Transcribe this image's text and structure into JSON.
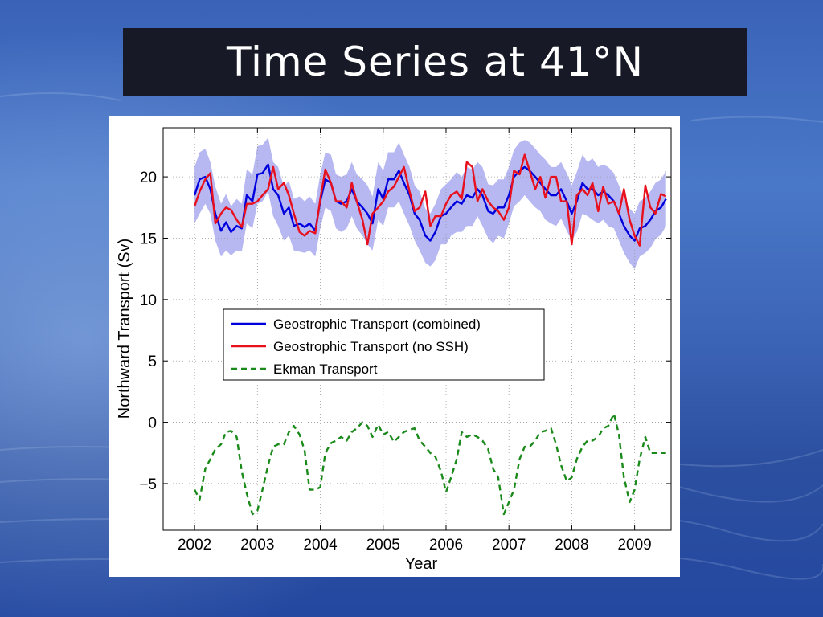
{
  "slide": {
    "title": "Time Series at 41°N"
  },
  "colors": {
    "combined": "#0000dd",
    "no_ssh": "#e8101c",
    "ekman": "#1a8a1a",
    "band": "#b7b7f2",
    "title_bar": "#171a26"
  },
  "chart_data": {
    "type": "line",
    "title": "",
    "xlabel": "Year",
    "ylabel": "Northward Transport (Sv)",
    "xlim": [
      2001.5,
      2009.58
    ],
    "ylim": [
      -8.8,
      24
    ],
    "xticks": [
      2002,
      2003,
      2004,
      2005,
      2006,
      2007,
      2008,
      2009
    ],
    "xtick_labels": [
      "2002",
      "2003",
      "2004",
      "2005",
      "2006",
      "2007",
      "2008",
      "2009"
    ],
    "yticks": [
      -5,
      0,
      5,
      10,
      15,
      20
    ],
    "ytick_labels": [
      "−5",
      "0",
      "5",
      "10",
      "15",
      "20"
    ],
    "grid": true,
    "legend_position": "center",
    "legend": [
      "Geostrophic Transport (combined)",
      "Geostrophic Transport (no SSH)",
      "Ekman Transport"
    ],
    "series": [
      {
        "name": "Geostrophic Transport (combined)",
        "style": "solid",
        "x": [
          2002.0,
          2002.08,
          2002.17,
          2002.25,
          2002.33,
          2002.42,
          2002.5,
          2002.58,
          2002.67,
          2002.75,
          2002.83,
          2002.92,
          2003.0,
          2003.08,
          2003.17,
          2003.25,
          2003.33,
          2003.42,
          2003.5,
          2003.58,
          2003.67,
          2003.75,
          2003.83,
          2003.92,
          2004.0,
          2004.08,
          2004.17,
          2004.25,
          2004.33,
          2004.42,
          2004.5,
          2004.58,
          2004.67,
          2004.75,
          2004.83,
          2004.92,
          2005.0,
          2005.08,
          2005.17,
          2005.25,
          2005.33,
          2005.42,
          2005.5,
          2005.58,
          2005.67,
          2005.75,
          2005.83,
          2005.92,
          2006.0,
          2006.08,
          2006.17,
          2006.25,
          2006.33,
          2006.42,
          2006.5,
          2006.58,
          2006.67,
          2006.75,
          2006.83,
          2006.92,
          2007.0,
          2007.08,
          2007.17,
          2007.25,
          2007.33,
          2007.42,
          2007.5,
          2007.58,
          2007.67,
          2007.75,
          2007.83,
          2007.92,
          2008.0,
          2008.08,
          2008.17,
          2008.25,
          2008.33,
          2008.42,
          2008.5,
          2008.58,
          2008.67,
          2008.75,
          2008.83,
          2008.92,
          2009.0,
          2009.08,
          2009.17,
          2009.25,
          2009.33,
          2009.42,
          2009.5
        ],
        "values": [
          18.5,
          19.8,
          20.0,
          19.0,
          17.0,
          15.6,
          16.3,
          15.5,
          16.0,
          15.8,
          18.5,
          18.0,
          20.2,
          20.3,
          21.0,
          19.0,
          18.5,
          17.0,
          17.5,
          16.0,
          16.2,
          15.9,
          16.2,
          15.6,
          18.0,
          19.8,
          19.5,
          18.0,
          17.8,
          18.0,
          19.0,
          18.0,
          17.5,
          17.0,
          16.2,
          19.0,
          18.2,
          19.8,
          19.8,
          20.5,
          19.5,
          18.5,
          17.0,
          16.5,
          15.2,
          14.8,
          15.5,
          16.8,
          17.0,
          17.5,
          18.0,
          17.8,
          18.5,
          18.3,
          19.0,
          18.5,
          17.2,
          17.0,
          17.5,
          17.5,
          18.5,
          20.0,
          20.5,
          20.8,
          20.5,
          20.0,
          19.5,
          19.0,
          18.5,
          18.5,
          19.0,
          18.0,
          17.0,
          18.0,
          19.5,
          19.0,
          19.0,
          18.5,
          18.8,
          18.5,
          18.0,
          17.0,
          16.0,
          15.2,
          14.8,
          15.8,
          16.0,
          16.5,
          17.2,
          17.5,
          18.2
        ]
      },
      {
        "name": "Geostrophic Transport (no SSH)",
        "style": "solid",
        "x": [
          2002.0,
          2002.08,
          2002.17,
          2002.25,
          2002.33,
          2002.42,
          2002.5,
          2002.58,
          2002.67,
          2002.75,
          2002.83,
          2002.92,
          2003.0,
          2003.08,
          2003.17,
          2003.25,
          2003.33,
          2003.42,
          2003.5,
          2003.58,
          2003.67,
          2003.75,
          2003.83,
          2003.92,
          2004.0,
          2004.08,
          2004.17,
          2004.25,
          2004.33,
          2004.42,
          2004.5,
          2004.58,
          2004.67,
          2004.75,
          2004.83,
          2004.92,
          2005.0,
          2005.08,
          2005.17,
          2005.25,
          2005.33,
          2005.42,
          2005.5,
          2005.58,
          2005.67,
          2005.75,
          2005.83,
          2005.92,
          2006.0,
          2006.08,
          2006.17,
          2006.25,
          2006.33,
          2006.42,
          2006.5,
          2006.58,
          2006.67,
          2006.75,
          2006.83,
          2006.92,
          2007.0,
          2007.08,
          2007.17,
          2007.25,
          2007.33,
          2007.42,
          2007.5,
          2007.58,
          2007.67,
          2007.75,
          2007.83,
          2007.92,
          2008.0,
          2008.08,
          2008.17,
          2008.25,
          2008.33,
          2008.42,
          2008.5,
          2008.58,
          2008.67,
          2008.75,
          2008.83,
          2008.92,
          2009.0,
          2009.08,
          2009.17,
          2009.25,
          2009.33,
          2009.42,
          2009.5
        ],
        "values": [
          17.6,
          18.8,
          19.8,
          20.3,
          16.2,
          17.0,
          17.5,
          17.3,
          16.5,
          15.9,
          17.8,
          17.8,
          18.0,
          18.5,
          19.0,
          20.8,
          19.0,
          19.5,
          18.5,
          17.0,
          15.5,
          15.2,
          15.6,
          15.4,
          18.2,
          20.6,
          19.5,
          18.0,
          18.0,
          17.5,
          19.5,
          18.0,
          16.5,
          14.5,
          17.0,
          17.5,
          18.0,
          18.8,
          19.2,
          20.0,
          20.8,
          18.8,
          17.2,
          17.5,
          18.8,
          16.0,
          16.8,
          16.8,
          17.8,
          18.5,
          18.8,
          18.2,
          21.2,
          20.8,
          18.0,
          19.0,
          18.0,
          17.5,
          17.2,
          16.5,
          17.5,
          20.5,
          20.2,
          21.8,
          20.5,
          19.0,
          20.0,
          18.3,
          20.0,
          20.0,
          18.0,
          18.0,
          14.5,
          18.5,
          19.0,
          18.5,
          19.5,
          17.2,
          19.2,
          17.8,
          18.0,
          17.0,
          19.0,
          16.5,
          15.2,
          14.4,
          19.3,
          17.5,
          17.0,
          18.6,
          18.4
        ]
      },
      {
        "name": "Ekman Transport",
        "style": "dashed",
        "x": [
          2002.0,
          2002.08,
          2002.17,
          2002.25,
          2002.33,
          2002.42,
          2002.5,
          2002.58,
          2002.67,
          2002.75,
          2002.83,
          2002.92,
          2003.0,
          2003.08,
          2003.17,
          2003.25,
          2003.33,
          2003.42,
          2003.5,
          2003.58,
          2003.67,
          2003.75,
          2003.83,
          2003.92,
          2004.0,
          2004.08,
          2004.17,
          2004.25,
          2004.33,
          2004.42,
          2004.5,
          2004.58,
          2004.67,
          2004.75,
          2004.83,
          2004.92,
          2005.0,
          2005.08,
          2005.17,
          2005.25,
          2005.33,
          2005.42,
          2005.5,
          2005.58,
          2005.67,
          2005.75,
          2005.83,
          2005.92,
          2006.0,
          2006.08,
          2006.17,
          2006.25,
          2006.33,
          2006.42,
          2006.5,
          2006.58,
          2006.67,
          2006.75,
          2006.83,
          2006.92,
          2007.0,
          2007.08,
          2007.17,
          2007.25,
          2007.33,
          2007.42,
          2007.5,
          2007.58,
          2007.67,
          2007.75,
          2007.83,
          2007.92,
          2008.0,
          2008.08,
          2008.17,
          2008.25,
          2008.33,
          2008.42,
          2008.5,
          2008.58,
          2008.67,
          2008.75,
          2008.83,
          2008.92,
          2009.0,
          2009.08,
          2009.17,
          2009.25,
          2009.33,
          2009.42,
          2009.5
        ],
        "values": [
          -5.5,
          -6.3,
          -3.8,
          -3.0,
          -2.2,
          -1.8,
          -0.8,
          -0.7,
          -1.2,
          -4.0,
          -5.8,
          -7.5,
          -7.2,
          -5.5,
          -3.5,
          -2.0,
          -1.8,
          -1.8,
          -0.8,
          -0.3,
          -1.0,
          -2.3,
          -5.5,
          -5.5,
          -5.3,
          -2.5,
          -1.7,
          -1.5,
          -1.2,
          -1.5,
          -0.8,
          -0.5,
          0.0,
          -0.3,
          -1.2,
          -0.2,
          -1.0,
          -0.8,
          -1.6,
          -1.2,
          -0.8,
          -0.6,
          -0.5,
          -1.5,
          -2.0,
          -2.5,
          -2.8,
          -4.0,
          -5.7,
          -4.5,
          -3.0,
          -0.8,
          -1.2,
          -1.0,
          -1.2,
          -1.5,
          -2.2,
          -3.8,
          -4.5,
          -7.5,
          -6.5,
          -5.5,
          -3.0,
          -2.0,
          -2.0,
          -1.5,
          -0.8,
          -0.7,
          -0.5,
          -1.8,
          -3.5,
          -4.8,
          -4.5,
          -3.0,
          -2.0,
          -1.5,
          -1.5,
          -1.2,
          -0.5,
          -0.3,
          0.7,
          -1.0,
          -4.5,
          -6.5,
          -5.5,
          -3.0,
          -1.2,
          -2.5,
          -2.5,
          -2.5,
          -2.5
        ]
      }
    ],
    "uncertainty_band": {
      "series": "Geostrophic Transport (combined)",
      "x": [
        2002.0,
        2002.08,
        2002.17,
        2002.25,
        2002.33,
        2002.42,
        2002.5,
        2002.58,
        2002.67,
        2002.75,
        2002.83,
        2002.92,
        2003.0,
        2003.08,
        2003.17,
        2003.25,
        2003.33,
        2003.42,
        2003.5,
        2003.58,
        2003.67,
        2003.75,
        2003.83,
        2003.92,
        2004.0,
        2004.08,
        2004.17,
        2004.25,
        2004.33,
        2004.42,
        2004.5,
        2004.58,
        2004.67,
        2004.75,
        2004.83,
        2004.92,
        2005.0,
        2005.08,
        2005.17,
        2005.25,
        2005.33,
        2005.42,
        2005.5,
        2005.58,
        2005.67,
        2005.75,
        2005.83,
        2005.92,
        2006.0,
        2006.08,
        2006.17,
        2006.25,
        2006.33,
        2006.42,
        2006.5,
        2006.58,
        2006.67,
        2006.75,
        2006.83,
        2006.92,
        2007.0,
        2007.08,
        2007.17,
        2007.25,
        2007.33,
        2007.42,
        2007.5,
        2007.58,
        2007.67,
        2007.75,
        2007.83,
        2007.92,
        2008.0,
        2008.08,
        2008.17,
        2008.25,
        2008.33,
        2008.42,
        2008.5,
        2008.58,
        2008.67,
        2008.75,
        2008.83,
        2008.92,
        2009.0,
        2009.08,
        2009.17,
        2009.25,
        2009.33,
        2009.42,
        2009.5
      ],
      "lower": [
        16.2,
        17.0,
        17.8,
        17.0,
        14.8,
        13.5,
        14.0,
        13.6,
        14.0,
        13.9,
        16.2,
        15.8,
        17.8,
        18.0,
        18.8,
        16.8,
        16.0,
        14.8,
        15.2,
        14.0,
        13.9,
        13.8,
        14.0,
        13.5,
        15.8,
        17.5,
        17.2,
        15.8,
        15.5,
        15.8,
        16.8,
        15.8,
        15.2,
        14.5,
        14.0,
        16.5,
        16.0,
        17.5,
        17.5,
        18.0,
        17.0,
        16.0,
        14.8,
        14.0,
        13.0,
        12.7,
        13.2,
        14.5,
        14.5,
        15.2,
        15.5,
        15.5,
        16.0,
        16.0,
        16.8,
        16.0,
        15.0,
        14.6,
        15.2,
        15.0,
        16.2,
        17.6,
        18.0,
        18.5,
        18.0,
        17.5,
        17.2,
        16.5,
        16.2,
        16.0,
        16.6,
        15.6,
        14.8,
        15.5,
        17.0,
        16.8,
        16.5,
        16.2,
        16.5,
        16.0,
        15.8,
        14.8,
        13.8,
        13.0,
        12.5,
        13.5,
        13.8,
        14.2,
        14.9,
        15.3,
        16.0
      ],
      "upper": [
        20.8,
        22.0,
        22.3,
        21.2,
        19.2,
        17.8,
        18.6,
        17.6,
        18.2,
        17.8,
        20.6,
        20.2,
        22.5,
        22.6,
        23.2,
        21.2,
        20.8,
        19.2,
        19.7,
        18.2,
        18.4,
        18.0,
        18.4,
        17.8,
        20.2,
        22.0,
        21.8,
        20.2,
        20.0,
        20.2,
        21.2,
        20.2,
        19.8,
        19.3,
        18.4,
        21.2,
        20.5,
        22.0,
        22.0,
        22.8,
        21.8,
        20.8,
        19.3,
        18.8,
        17.4,
        17.0,
        17.8,
        19.0,
        19.4,
        19.8,
        20.4,
        20.0,
        20.8,
        20.6,
        21.2,
        20.8,
        19.4,
        19.3,
        19.8,
        19.8,
        20.8,
        22.2,
        22.8,
        23.0,
        22.8,
        22.3,
        21.8,
        21.4,
        20.8,
        20.8,
        21.2,
        20.3,
        19.3,
        20.4,
        21.8,
        21.2,
        21.5,
        20.8,
        21.0,
        20.8,
        20.3,
        19.3,
        18.2,
        17.4,
        17.0,
        18.0,
        18.3,
        18.8,
        19.5,
        19.8,
        20.5
      ]
    }
  }
}
